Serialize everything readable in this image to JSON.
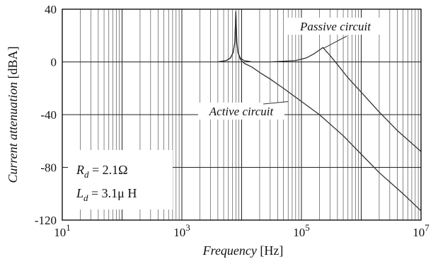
{
  "chart_data": {
    "type": "line",
    "title": "",
    "xscale": "log",
    "xlim": [
      10,
      10000000
    ],
    "ylim": [
      -120,
      40
    ],
    "grid": true,
    "xlabel": {
      "italic": "Frequency",
      "unit": "[Hz]"
    },
    "ylabel": {
      "italic": "Current attenuation",
      "unit": "[dBA]"
    },
    "xticks": [
      {
        "base": "10",
        "exp": "1",
        "value": 10
      },
      {
        "base": "10",
        "exp": "3",
        "value": 1000
      },
      {
        "base": "10",
        "exp": "5",
        "value": 100000
      },
      {
        "base": "10",
        "exp": "7",
        "value": 10000000
      }
    ],
    "yticks": [
      {
        "label": "40",
        "value": 40
      },
      {
        "label": "0",
        "value": 0
      },
      {
        "label": "-40",
        "value": -40
      },
      {
        "label": "-80",
        "value": -80
      },
      {
        "label": "-120",
        "value": -120
      }
    ],
    "series": [
      {
        "name": "Passive circuit",
        "x": [
          4000,
          5500,
          6500,
          7200,
          7700,
          8000,
          8300,
          8700,
          9500,
          11000,
          15000,
          30000,
          80000,
          120000,
          160000,
          200000,
          230000,
          260000,
          300000,
          400000,
          600000,
          1000000,
          2000000,
          4000000,
          10000000
        ],
        "y": [
          0,
          1,
          3,
          7,
          15,
          38,
          15,
          7,
          3,
          1,
          0,
          0,
          1,
          3,
          6,
          9,
          11,
          8,
          5,
          -2,
          -12,
          -23,
          -38,
          -52,
          -68
        ]
      },
      {
        "name": "Active circuit",
        "x": [
          4000,
          5500,
          6500,
          7200,
          7700,
          8000,
          8300,
          8700,
          9500,
          11000,
          15000,
          20000,
          30000,
          50000,
          100000,
          200000,
          500000,
          1000000,
          2000000,
          5000000,
          10000000
        ],
        "y": [
          0,
          1,
          3,
          7,
          15,
          38,
          15,
          7,
          2,
          -1,
          -4,
          -8,
          -13,
          -20,
          -30,
          -40,
          -56,
          -70,
          -84,
          -100,
          -113
        ]
      }
    ],
    "annotations": [
      {
        "text": "Passive circuit",
        "target_series": "Passive circuit",
        "target_x": 230000,
        "target_y": 9
      },
      {
        "text": "Active circuit",
        "target_series": "Active circuit",
        "target_x": 60000,
        "target_y": -29
      }
    ],
    "parameters": [
      {
        "symbol": "R",
        "subscript": "d",
        "eq": " = 2.1",
        "unit": "Ω"
      },
      {
        "symbol": "L",
        "subscript": "d",
        "eq": " = 3.1",
        "unit": "μ H"
      }
    ]
  }
}
